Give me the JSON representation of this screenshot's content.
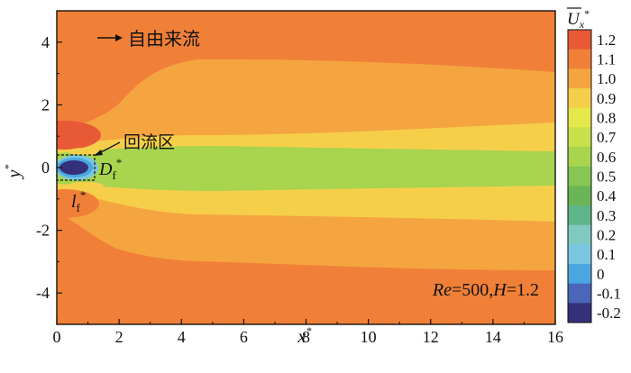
{
  "chart_data": {
    "type": "heatmap",
    "title": "",
    "xlabel": "x*",
    "ylabel": "y*",
    "xlim": [
      0,
      16
    ],
    "ylim": [
      -5,
      5
    ],
    "x_ticks": [
      0,
      2,
      4,
      6,
      8,
      10,
      12,
      14,
      16
    ],
    "y_ticks": [
      -4,
      -2,
      0,
      2,
      4
    ],
    "colorbar": {
      "title": "Ux*",
      "levels": [
        1.2,
        1.1,
        1.0,
        0.9,
        0.8,
        0.7,
        0.6,
        0.5,
        0.4,
        0.3,
        0.2,
        0.1,
        0,
        -0.1,
        -0.2
      ],
      "labels": [
        "1.2",
        "1.1",
        "1.0",
        "0.9",
        "0.8",
        "0.7",
        "0.6",
        "0.5",
        "0.4",
        "0.3",
        "0.2",
        "0.1",
        "0",
        "-0.1",
        "-0.2"
      ],
      "colors": [
        "#e85a35",
        "#f08038",
        "#f5a540",
        "#f6cf4a",
        "#e5e84a",
        "#c7e04b",
        "#a8d44e",
        "#86c652",
        "#6ab556",
        "#5eb58a",
        "#7fc9c0",
        "#78c6e0",
        "#4aa6e0",
        "#4a66b8",
        "#35307a"
      ]
    },
    "field_regions": {
      "free_stream": 1.05,
      "wake_outer": 0.95,
      "wake_mid": 0.85,
      "wake_core": 0.6,
      "wake_center": 0.55,
      "recirculation": -0.2
    },
    "annotations": {
      "free_stream": "自由来流",
      "recirculation": "回流区",
      "width_symbol": "D",
      "width_subscript": "f",
      "length_symbol": "l",
      "length_subscript": "f",
      "star": "*",
      "params_re_label": "Re",
      "params_re_value": "=500,",
      "params_h_label": "H",
      "params_h_value": "=1.2"
    },
    "axis_text": {
      "x_symbol": "x",
      "y_symbol": "y",
      "cb_symbol": "U",
      "cb_subscript": "x",
      "star": "*"
    }
  }
}
